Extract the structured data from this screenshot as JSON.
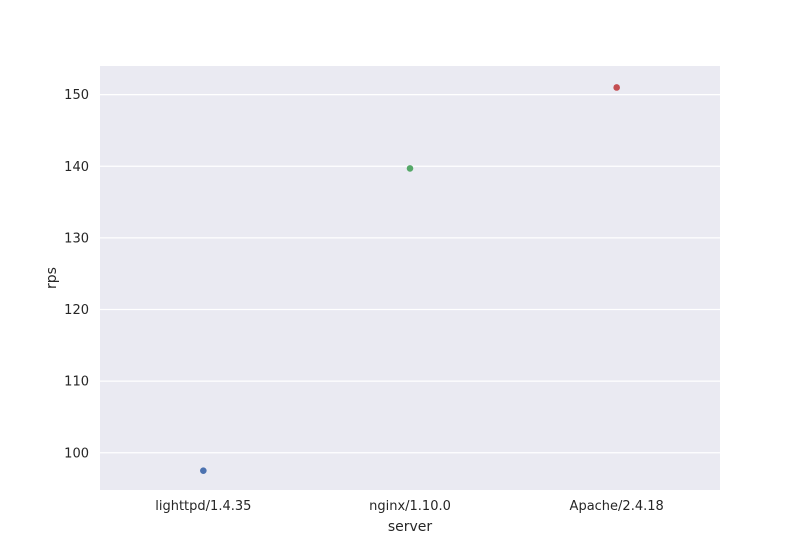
{
  "chart_data": {
    "type": "scatter",
    "title": "",
    "xlabel": "server",
    "ylabel": "rps",
    "categories": [
      "lighttpd/1.4.35",
      "nginx/1.10.0",
      "Apache/2.4.18"
    ],
    "values": [
      97.5,
      139.7,
      151.0
    ],
    "point_colors": [
      "#4c72b0",
      "#55a868",
      "#c44e52"
    ],
    "ylim": [
      94.8,
      154.0
    ],
    "yticks": [
      100,
      110,
      120,
      130,
      140,
      150
    ],
    "grid": true,
    "background": "#eaeaf2",
    "grid_color": "#ffffff"
  }
}
